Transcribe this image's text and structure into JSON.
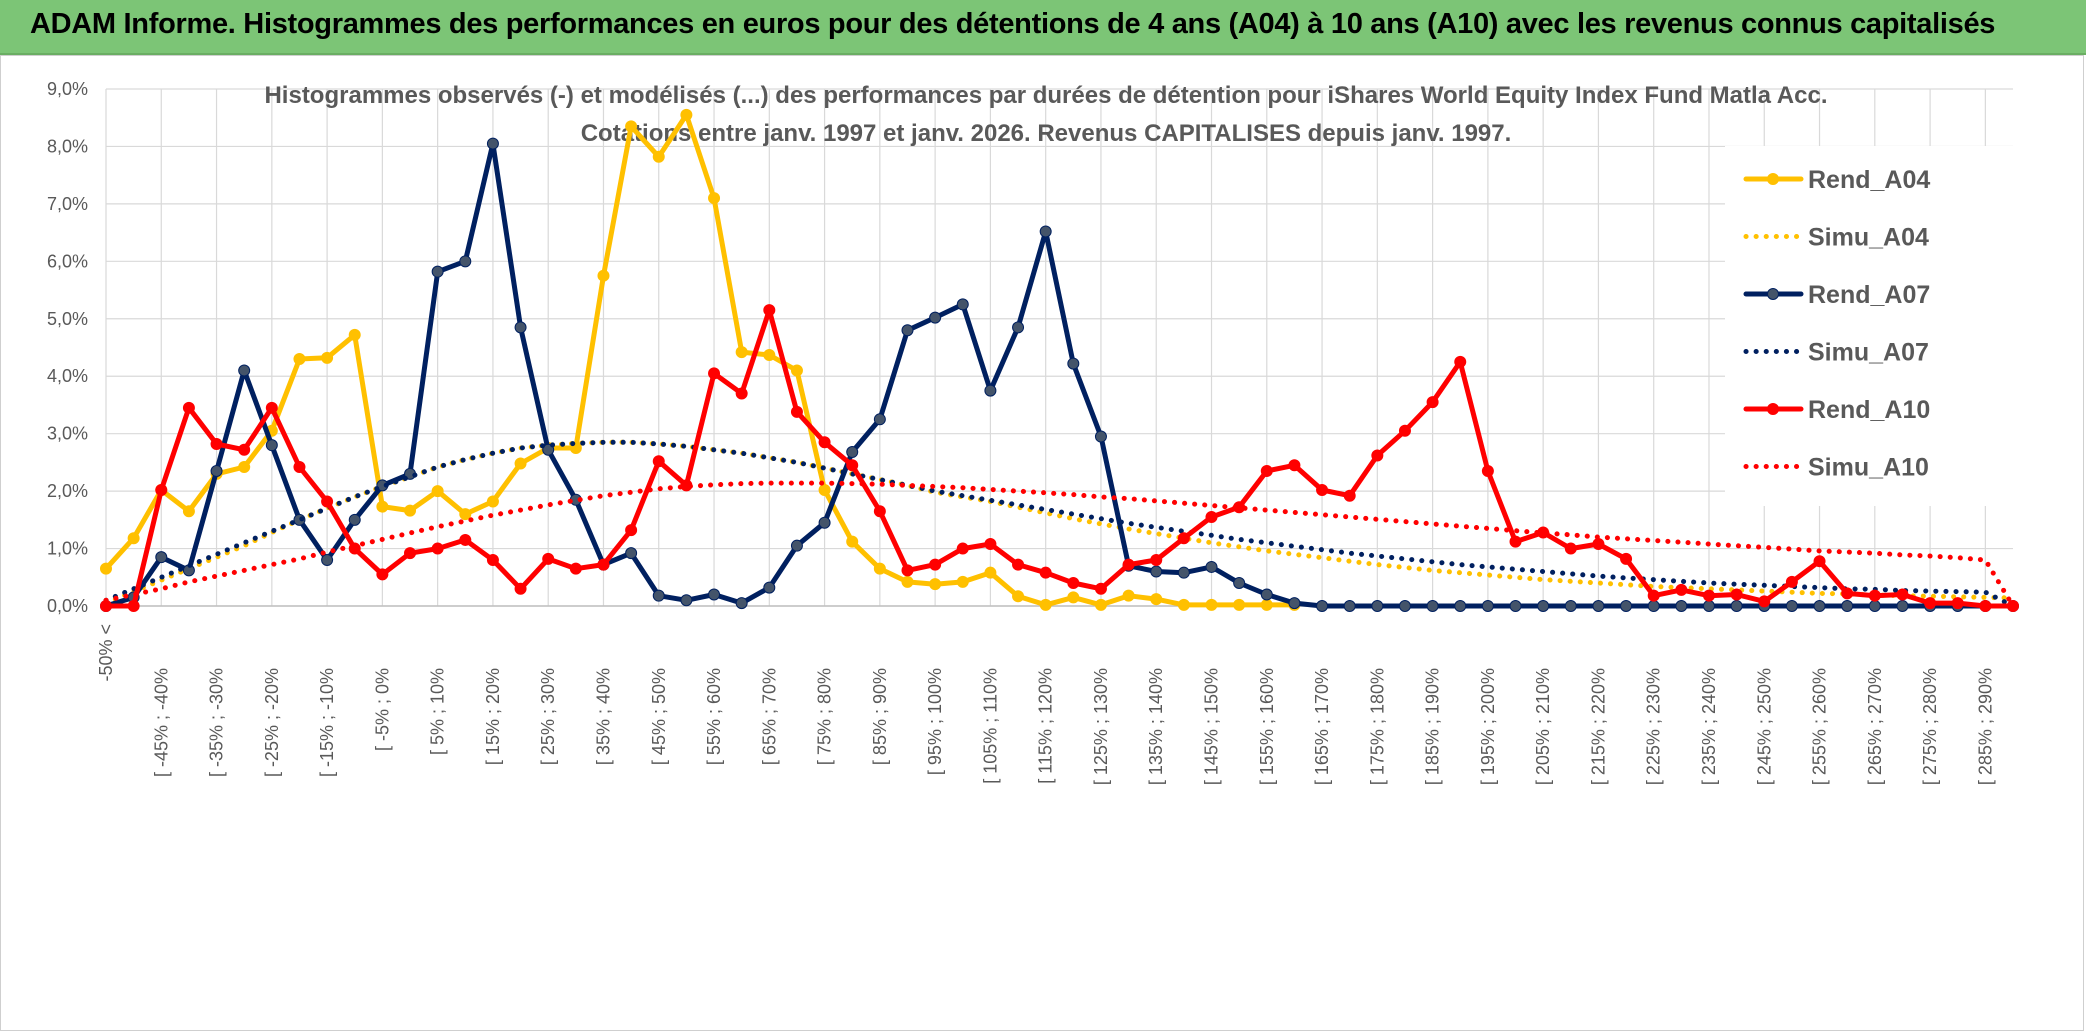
{
  "banner": {
    "title": "ADAM Informe. Histogrammes des performances en euros pour des détentions de 4 ans (A04) à 10 ans (A10) avec les revenus connus capitalisés"
  },
  "chart_data": {
    "type": "line",
    "title_line1": "Histogrammes observés (-) et modélisés (...) des performances par durées de détention pour iShares World Equity Index Fund Matla Acc.",
    "title_line2": "Cotations entre janv. 1997 et janv. 2026. Revenus CAPITALISES depuis janv. 1997.",
    "ylim": [
      0,
      9
    ],
    "yticks": [
      "0,0%",
      "1,0%",
      "2,0%",
      "3,0%",
      "4,0%",
      "5,0%",
      "6,0%",
      "7,0%",
      "8,0%",
      "9,0%"
    ],
    "xlabels": [
      "-50% <",
      "[ -45% ; -40%",
      "[ -35% ; -30%",
      "[ -25% ; -20%",
      "[ -15% ; -10%",
      "[ -5% ; 0%",
      "[ 5% ; 10%",
      "[ 15% ; 20%",
      "[ 25% ; 30%",
      "[ 35% ; 40%",
      "[ 45% ; 50%",
      "[ 55% ; 60%",
      "[ 65% ; 70%",
      "[ 75% ; 80%",
      "[ 85% ; 90%",
      "[ 95% ; 100%",
      "[ 105% ; 110%",
      "[ 115% ; 120%",
      "[ 125% ; 130%",
      "[ 135% ; 140%",
      "[ 145% ; 150%",
      "[ 155% ; 160%",
      "[ 165% ; 170%",
      "[ 175% ; 180%",
      "[ 185% ; 190%",
      "[ 195% ; 200%",
      "[ 205% ; 210%",
      "[ 215% ; 220%",
      "[ 225% ; 230%",
      "[ 235% ; 240%",
      "[ 245% ; 250%",
      "[ 255% ; 260%",
      "[ 265% ; 270%",
      "[ 275% ; 280%",
      "[ 285% ; 290%"
    ],
    "n_points": 70,
    "series": [
      {
        "name": "Rend_A04",
        "style": "solid",
        "color": "#ffc000",
        "marker_color": "#ffc000",
        "values": [
          0.65,
          1.18,
          2.02,
          1.65,
          2.3,
          2.42,
          3.05,
          4.3,
          4.32,
          4.72,
          1.73,
          1.66,
          2.0,
          1.6,
          1.82,
          2.48,
          2.75,
          2.75,
          5.75,
          8.35,
          7.82,
          8.55,
          7.1,
          4.42,
          4.37,
          4.1,
          2.02,
          1.12,
          0.65,
          0.42,
          0.38,
          0.42,
          0.58,
          0.17,
          0.02,
          0.15,
          0.02,
          0.18,
          0.12,
          0.02,
          0.02,
          0.02,
          0.02,
          0.02,
          null,
          null,
          null,
          null,
          null,
          null,
          null,
          null,
          null,
          null,
          null,
          null,
          null,
          null,
          null,
          null,
          null,
          null,
          null,
          null,
          null,
          null,
          null,
          null,
          null,
          null
        ]
      },
      {
        "name": "Simu_A04",
        "style": "dotted",
        "color": "#ffc000",
        "values": [
          0.05,
          0.25,
          0.45,
          0.65,
          0.85,
          1.05,
          1.28,
          1.5,
          1.7,
          1.9,
          2.08,
          2.25,
          2.42,
          2.55,
          2.66,
          2.75,
          2.8,
          2.83,
          2.85,
          2.85,
          2.82,
          2.78,
          2.72,
          2.66,
          2.58,
          2.5,
          2.4,
          2.3,
          2.2,
          2.1,
          1.98,
          1.9,
          1.82,
          1.72,
          1.62,
          1.52,
          1.43,
          1.34,
          1.26,
          1.18,
          1.1,
          1.03,
          0.96,
          0.9,
          0.84,
          0.78,
          0.72,
          0.67,
          0.62,
          0.58,
          0.54,
          0.5,
          0.46,
          0.43,
          0.4,
          0.37,
          0.34,
          0.32,
          0.3,
          0.28,
          0.26,
          0.24,
          0.22,
          0.21,
          0.19,
          0.18,
          0.17,
          0.16,
          0.15,
          0.14
        ]
      },
      {
        "name": "Rend_A07",
        "style": "solid",
        "color": "#002060",
        "marker_color": "#44546a",
        "values": [
          0.0,
          0.15,
          0.85,
          0.62,
          2.35,
          4.1,
          2.8,
          1.5,
          0.8,
          1.5,
          2.1,
          2.3,
          5.82,
          6.0,
          8.05,
          4.85,
          2.72,
          1.85,
          0.72,
          0.92,
          0.18,
          0.1,
          0.2,
          0.05,
          0.32,
          1.05,
          1.45,
          2.68,
          3.25,
          4.8,
          5.02,
          5.25,
          3.75,
          4.85,
          6.52,
          4.22,
          2.95,
          0.7,
          0.6,
          0.58,
          0.68,
          0.4,
          0.2,
          0.05,
          0.0,
          0.0,
          0.0,
          0.0,
          0.0,
          0.0,
          0.0,
          0.0,
          0.0,
          0.0,
          0.0,
          0.0,
          0.0,
          0.0,
          0.0,
          0.0,
          0.0,
          0.0,
          0.0,
          0.0,
          0.0,
          0.0,
          0.0,
          0.0,
          0.0,
          0.0
        ]
      },
      {
        "name": "Simu_A07",
        "style": "dotted",
        "color": "#002060",
        "values": [
          0.1,
          0.3,
          0.5,
          0.7,
          0.9,
          1.1,
          1.3,
          1.5,
          1.7,
          1.9,
          2.08,
          2.25,
          2.42,
          2.55,
          2.66,
          2.75,
          2.8,
          2.83,
          2.85,
          2.85,
          2.82,
          2.78,
          2.72,
          2.66,
          2.58,
          2.5,
          2.4,
          2.3,
          2.2,
          2.1,
          2.0,
          1.92,
          1.84,
          1.76,
          1.68,
          1.6,
          1.52,
          1.44,
          1.37,
          1.3,
          1.23,
          1.16,
          1.1,
          1.04,
          0.98,
          0.92,
          0.87,
          0.82,
          0.77,
          0.72,
          0.68,
          0.64,
          0.6,
          0.56,
          0.52,
          0.49,
          0.46,
          0.43,
          0.4,
          0.38,
          0.36,
          0.34,
          0.32,
          0.3,
          0.29,
          0.27,
          0.26,
          0.25,
          0.24,
          0.0
        ]
      },
      {
        "name": "Rend_A10",
        "style": "solid",
        "color": "#ff0000",
        "marker_color": "#ff0000",
        "values": [
          0.0,
          0.0,
          2.02,
          3.45,
          2.82,
          2.72,
          3.45,
          2.42,
          1.82,
          1.0,
          0.55,
          0.92,
          1.0,
          1.15,
          0.8,
          0.3,
          0.82,
          0.65,
          0.72,
          1.32,
          2.52,
          2.1,
          4.05,
          3.7,
          5.15,
          3.38,
          2.85,
          2.45,
          1.65,
          0.62,
          0.72,
          1.0,
          1.08,
          0.72,
          0.58,
          0.4,
          0.3,
          0.72,
          0.8,
          1.18,
          1.55,
          1.72,
          2.35,
          2.45,
          2.02,
          1.92,
          2.62,
          3.05,
          3.55,
          4.25,
          2.35,
          1.12,
          1.28,
          1.0,
          1.08,
          0.82,
          0.18,
          0.28,
          0.18,
          0.2,
          0.08,
          0.42,
          0.78,
          0.22,
          0.18,
          0.2,
          0.05,
          0.05,
          0.0,
          0.0
        ]
      },
      {
        "name": "Simu_A10",
        "style": "dotted",
        "color": "#ff0000",
        "values": [
          0.1,
          0.2,
          0.3,
          0.42,
          0.52,
          0.62,
          0.72,
          0.82,
          0.94,
          1.05,
          1.16,
          1.27,
          1.38,
          1.48,
          1.58,
          1.67,
          1.76,
          1.84,
          1.92,
          1.98,
          2.04,
          2.08,
          2.11,
          2.13,
          2.14,
          2.14,
          2.14,
          2.13,
          2.12,
          2.1,
          2.08,
          2.06,
          2.03,
          2.0,
          1.97,
          1.94,
          1.9,
          1.87,
          1.83,
          1.79,
          1.75,
          1.71,
          1.67,
          1.63,
          1.59,
          1.55,
          1.51,
          1.47,
          1.43,
          1.39,
          1.35,
          1.31,
          1.27,
          1.24,
          1.2,
          1.17,
          1.14,
          1.11,
          1.08,
          1.05,
          1.02,
          0.99,
          0.96,
          0.94,
          0.92,
          0.89,
          0.87,
          0.84,
          0.8,
          0.0
        ]
      }
    ]
  }
}
